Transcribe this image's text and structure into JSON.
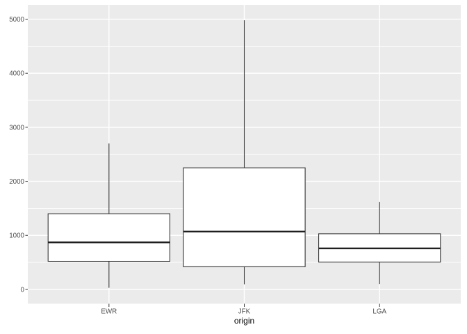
{
  "chart_data": {
    "type": "boxplot",
    "title": "",
    "xlabel": "origin",
    "ylabel": "",
    "categories": [
      "EWR",
      "JFK",
      "LGA"
    ],
    "series": [
      {
        "name": "EWR",
        "whisker_low": 30,
        "q1": 520,
        "median": 870,
        "q3": 1400,
        "whisker_high": 2700
      },
      {
        "name": "JFK",
        "whisker_low": 95,
        "q1": 420,
        "median": 1070,
        "q3": 2250,
        "whisker_high": 4980
      },
      {
        "name": "LGA",
        "whisker_low": 100,
        "q1": 505,
        "median": 760,
        "q3": 1030,
        "whisker_high": 1620
      }
    ],
    "y_ticks": [
      0,
      1000,
      2000,
      3000,
      4000,
      5000
    ],
    "y_minor_ticks": [
      500,
      1500,
      2500,
      3500,
      4500
    ],
    "axis_range": {
      "min": -265,
      "max": 5265
    },
    "grid": true,
    "legend": "none",
    "outliers_shown": false,
    "style": {
      "panel_bg": "#EBEBEB",
      "plot_bg": "#FFFFFF",
      "grid_color": "#FFFFFF",
      "box_fill": "#FFFFFF",
      "box_stroke": "#333333",
      "median_stroke": "#1F1F1F",
      "tick_mark_color": "#333333",
      "tick_label_color": "#4D4D4D",
      "axis_title_color": "#000000"
    }
  }
}
